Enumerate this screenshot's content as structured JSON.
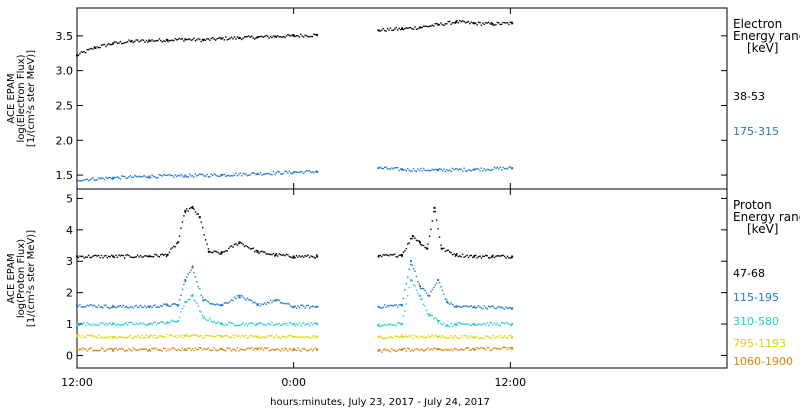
{
  "x_axis": {
    "title": "hours:minutes, July 23, 2017 - July 24, 2017",
    "range_hours": [
      0,
      36
    ],
    "ticks": [
      {
        "hour": 0,
        "label": "12:00"
      },
      {
        "hour": 12,
        "label": "0:00"
      },
      {
        "hour": 24,
        "label": "12:00"
      }
    ],
    "gap_hours": [
      13.3,
      16.7
    ]
  },
  "chart_data": [
    {
      "type": "scatter",
      "panel": "electron",
      "ylabel_lines": [
        "ACE EPAM",
        "log(Electron Flux)",
        "[1/(cm²s ster MeV)]"
      ],
      "ylim": [
        1.3,
        3.9
      ],
      "yticks": [
        {
          "value": 1.5,
          "label": "1.5"
        },
        {
          "value": 2.0,
          "label": "2.0"
        },
        {
          "value": 2.5,
          "label": "2.5"
        },
        {
          "value": 3.0,
          "label": "3.0"
        },
        {
          "value": 3.5,
          "label": "3.5"
        }
      ],
      "legend": {
        "title_lines": [
          "Electron",
          "Energy range",
          "[keV]"
        ],
        "placement": "right"
      },
      "series": [
        {
          "name": "38-53",
          "color": "#000000",
          "x": [
            0,
            1,
            2,
            3,
            4,
            5,
            6,
            7,
            8,
            9,
            10,
            11,
            12,
            13.3,
            16.7,
            18,
            19,
            20,
            21,
            22,
            23,
            24.1
          ],
          "y": [
            3.22,
            3.33,
            3.39,
            3.42,
            3.43,
            3.44,
            3.45,
            3.44,
            3.46,
            3.47,
            3.48,
            3.49,
            3.5,
            3.51,
            3.58,
            3.6,
            3.62,
            3.66,
            3.7,
            3.68,
            3.67,
            3.68
          ]
        },
        {
          "name": "175-315",
          "color": "#1f78c8",
          "x": [
            0,
            2,
            4,
            6,
            8,
            10,
            12,
            13.3,
            16.7,
            18,
            20,
            22,
            24.1
          ],
          "y": [
            1.43,
            1.46,
            1.48,
            1.49,
            1.5,
            1.52,
            1.54,
            1.55,
            1.6,
            1.58,
            1.57,
            1.58,
            1.6
          ]
        }
      ]
    },
    {
      "type": "scatter",
      "panel": "proton",
      "ylabel_lines": [
        "ACE EPAM",
        "log(Proton Flux)",
        "[1/(cm²s ster MeV)]"
      ],
      "ylim": [
        -0.4,
        5.3
      ],
      "yticks": [
        {
          "value": 0,
          "label": "0"
        },
        {
          "value": 1,
          "label": "1"
        },
        {
          "value": 2,
          "label": "2"
        },
        {
          "value": 3,
          "label": "3"
        },
        {
          "value": 4,
          "label": "4"
        },
        {
          "value": 5,
          "label": "5"
        }
      ],
      "legend": {
        "title_lines": [
          "Proton",
          "Energy range",
          "[keV]"
        ],
        "placement": "right"
      },
      "series": [
        {
          "name": "47-68",
          "color": "#000000",
          "x": [
            0,
            2,
            4,
            5,
            5.6,
            6.0,
            6.4,
            6.8,
            7.3,
            8,
            9,
            10,
            11,
            12,
            13.3,
            16.7,
            18,
            18.6,
            19.0,
            19.4,
            19.8,
            20.2,
            21,
            22,
            23,
            24.1
          ],
          "y": [
            3.15,
            3.15,
            3.16,
            3.2,
            3.6,
            4.6,
            4.7,
            4.4,
            3.3,
            3.25,
            3.6,
            3.3,
            3.2,
            3.15,
            3.15,
            3.15,
            3.2,
            3.8,
            3.6,
            3.4,
            4.7,
            3.4,
            3.2,
            3.15,
            3.15,
            3.15
          ]
        },
        {
          "name": "115-195",
          "color": "#1f78c8",
          "x": [
            0,
            2,
            4,
            5,
            5.6,
            6.0,
            6.4,
            7.0,
            8,
            9,
            10,
            11,
            12,
            13.3,
            16.7,
            18,
            18.5,
            19.0,
            19.5,
            20.0,
            20.5,
            21,
            22,
            24.1
          ],
          "y": [
            1.6,
            1.55,
            1.55,
            1.6,
            1.6,
            2.4,
            2.8,
            1.75,
            1.6,
            1.9,
            1.6,
            1.75,
            1.55,
            1.55,
            1.55,
            1.6,
            3.0,
            2.2,
            1.9,
            2.4,
            1.7,
            1.55,
            1.55,
            1.5
          ]
        },
        {
          "name": "310-580",
          "color": "#20d0d0",
          "x": [
            0,
            2,
            4,
            5,
            5.6,
            6.0,
            6.4,
            7.0,
            8,
            10,
            12,
            13.3,
            16.7,
            18,
            18.5,
            19.0,
            19.5,
            20.0,
            20.5,
            21,
            22,
            24.1
          ],
          "y": [
            1.0,
            1.0,
            1.0,
            1.05,
            1.1,
            1.7,
            1.9,
            1.2,
            1.0,
            1.0,
            1.0,
            1.0,
            0.95,
            1.0,
            2.4,
            1.9,
            1.3,
            1.1,
            0.95,
            1.0,
            1.0,
            1.0
          ]
        },
        {
          "name": "795-1193",
          "color": "#d8d800",
          "x": [
            0,
            2,
            4,
            6,
            8,
            10,
            12,
            13.3,
            16.7,
            18,
            20,
            22,
            24.1
          ],
          "y": [
            0.6,
            0.58,
            0.6,
            0.62,
            0.6,
            0.6,
            0.58,
            0.58,
            0.58,
            0.6,
            0.6,
            0.58,
            0.6
          ]
        },
        {
          "name": "1060-1900",
          "color": "#e08000",
          "x": [
            0,
            2,
            4,
            6,
            8,
            10,
            12,
            13.3,
            16.7,
            18,
            20,
            22,
            24.1
          ],
          "y": [
            0.2,
            0.18,
            0.18,
            0.2,
            0.2,
            0.2,
            0.18,
            0.2,
            0.15,
            0.18,
            0.2,
            0.2,
            0.22
          ]
        }
      ]
    }
  ]
}
